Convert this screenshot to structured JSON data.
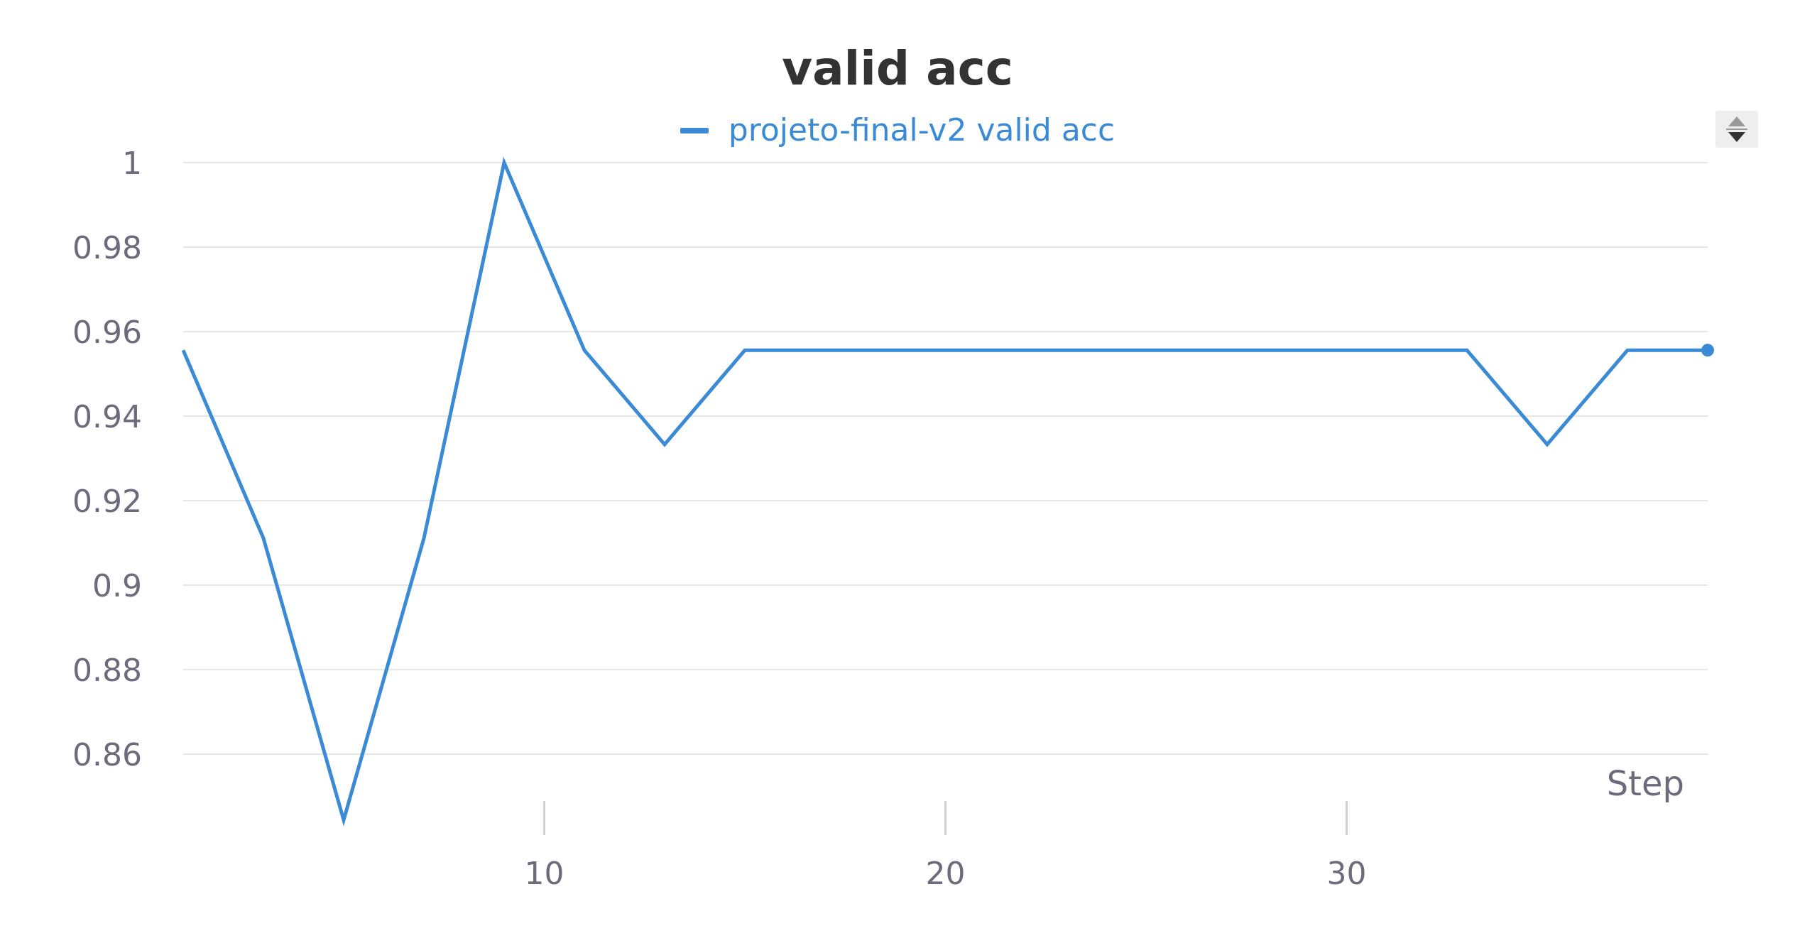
{
  "chart_data": {
    "type": "line",
    "title": "valid acc",
    "xlabel": "Step",
    "ylabel": "",
    "xlim": [
      0,
      38
    ],
    "ylim": [
      0.843,
      1.0
    ],
    "x_ticks": [
      10,
      20,
      30
    ],
    "y_ticks": [
      0.86,
      0.88,
      0.9,
      0.92,
      0.94,
      0.96,
      0.98,
      1
    ],
    "y_tick_labels": [
      "0.86",
      "0.88",
      "0.9",
      "0.92",
      "0.94",
      "0.96",
      "0.98",
      "1"
    ],
    "x_tick_labels": [
      "10",
      "20",
      "30"
    ],
    "grid": "horizontal",
    "legend_position": "top-center",
    "series": [
      {
        "name": "projeto-final-v2 valid acc",
        "color": "#3a8ad6",
        "x": [
          1,
          3,
          5,
          7,
          9,
          11,
          13,
          15,
          17,
          19,
          21,
          23,
          25,
          27,
          29,
          31,
          33,
          35,
          37,
          39
        ],
        "y": [
          0.9556,
          0.9111,
          0.8444,
          0.9111,
          1.0,
          0.9556,
          0.9333,
          0.9556,
          0.9556,
          0.9556,
          0.9556,
          0.9556,
          0.9556,
          0.9556,
          0.9556,
          0.9556,
          0.9556,
          0.9333,
          0.9556,
          0.9556
        ]
      }
    ]
  }
}
